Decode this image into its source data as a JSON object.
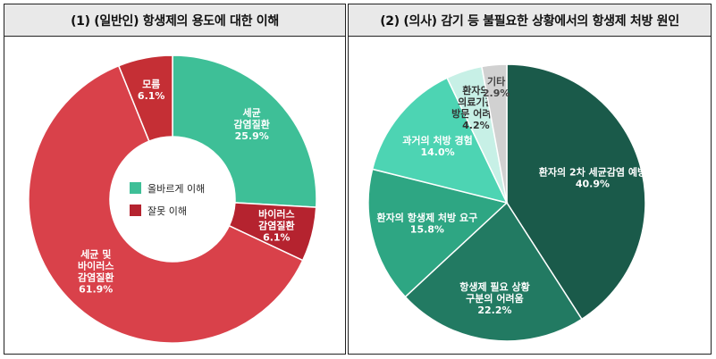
{
  "charts": [
    {
      "title": "(1) (일반인) 항생제의 용도에 대한 이해",
      "type": "donut",
      "legend": [
        {
          "label": "올바르게 이해",
          "color": "#3ebf97"
        },
        {
          "label": "잘못 이해",
          "color": "#b5232f"
        }
      ]
    },
    {
      "title": "(2) (의사) 감기 등 불필요한 상황에서의 항생제 처방 원인",
      "type": "pie"
    }
  ],
  "chart_data": [
    {
      "type": "pie",
      "variant": "donut",
      "title": "(1) (일반인) 항생제의 용도에 대한 이해",
      "categories": [
        "세균 감염질환",
        "바이러스 감염질환",
        "세균 및 바이러스 감염질환",
        "모름"
      ],
      "label_lines": [
        [
          "세균",
          "감염질환"
        ],
        [
          "바이러스",
          "감염질환"
        ],
        [
          "세균 및",
          "바이러스",
          "감염질환"
        ],
        [
          "모름"
        ]
      ],
      "values": [
        25.9,
        6.1,
        61.9,
        6.1
      ],
      "value_labels": [
        "25.9%",
        "6.1%",
        "61.9%",
        "6.1%"
      ],
      "colors": [
        "#3ebf97",
        "#b5232f",
        "#d9414a",
        "#c52f35"
      ],
      "label_colors": [
        "#ffffff",
        "#ffffff",
        "#ffffff",
        "#ffffff"
      ],
      "legend": [
        "올바르게 이해",
        "잘못 이해"
      ]
    },
    {
      "type": "pie",
      "title": "(2) (의사) 감기 등 불필요한 상황에서의 항생제 처방 원인",
      "categories": [
        "환자의 2차 세균감염 예방",
        "항생제 필요 상황 구분의 어려움",
        "환자의 항생제 처방 요구",
        "과거의 처방 경험",
        "환자의 의료기관 방문 어려움",
        "기타"
      ],
      "label_lines": [
        [
          "환자의 2차 세균감염 예방"
        ],
        [
          "항생제 필요 상황",
          "구분의 어려움"
        ],
        [
          "환자의 항생제 처방 요구"
        ],
        [
          "과거의 처방 경험"
        ],
        [
          "환자의",
          "의료기관",
          "방문 어려움"
        ],
        [
          "기타"
        ]
      ],
      "values": [
        40.9,
        22.2,
        15.8,
        14.0,
        4.2,
        2.9
      ],
      "value_labels": [
        "40.9%",
        "22.2%",
        "15.8%",
        "14.0%",
        "4.2%",
        "2.9%"
      ],
      "colors": [
        "#1a5a4a",
        "#227a62",
        "#2ea683",
        "#4dd4b3",
        "#c7f0e6",
        "#d1d1d1"
      ],
      "label_colors": [
        "#ffffff",
        "#ffffff",
        "#ffffff",
        "#ffffff",
        "#333333",
        "#444444"
      ]
    }
  ]
}
